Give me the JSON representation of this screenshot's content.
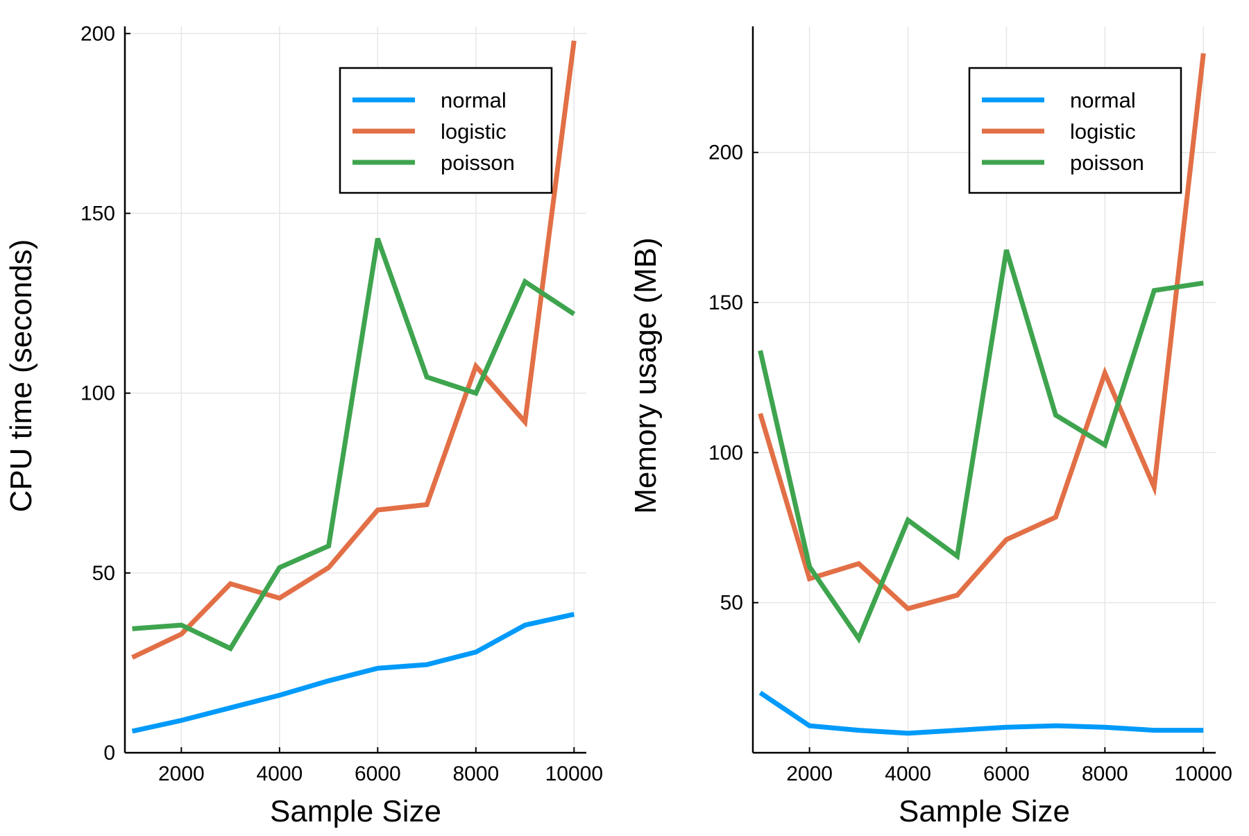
{
  "chart_data": [
    {
      "type": "line",
      "xlabel": "Sample Size",
      "ylabel": "CPU time (seconds)",
      "xlim": [
        850,
        10250
      ],
      "ylim": [
        0,
        202
      ],
      "xticks": [
        2000,
        4000,
        6000,
        8000,
        10000
      ],
      "yticks": [
        0,
        50,
        100,
        150,
        200
      ],
      "grid": true,
      "legend": "top-right",
      "x": [
        1000,
        2000,
        3000,
        4000,
        5000,
        6000,
        7000,
        8000,
        9000,
        10000
      ],
      "series": [
        {
          "name": "normal",
          "color": "#009AFA",
          "values": [
            6,
            9,
            12.5,
            16,
            20,
            23.5,
            24.5,
            28,
            35.5,
            38.5
          ]
        },
        {
          "name": "logistic",
          "color": "#E26F46",
          "values": [
            26.5,
            33,
            47,
            43,
            51.5,
            67.5,
            69,
            107.5,
            92,
            198
          ]
        },
        {
          "name": "poisson",
          "color": "#3EA44E",
          "values": [
            34.5,
            35.5,
            29,
            51.5,
            57.5,
            143,
            104.5,
            100,
            131,
            122
          ]
        }
      ]
    },
    {
      "type": "line",
      "xlabel": "Sample Size",
      "ylabel": "Memory usage (MB)",
      "xlim": [
        850,
        10250
      ],
      "ylim": [
        0,
        242
      ],
      "xticks": [
        2000,
        4000,
        6000,
        8000,
        10000
      ],
      "yticks": [
        50,
        100,
        150,
        200
      ],
      "grid": true,
      "legend": "top-right",
      "x": [
        1000,
        2000,
        3000,
        4000,
        5000,
        6000,
        7000,
        8000,
        9000,
        10000
      ],
      "series": [
        {
          "name": "normal",
          "color": "#009AFA",
          "values": [
            20,
            9,
            7.5,
            6.5,
            7.5,
            8.5,
            9,
            8.5,
            7.5,
            7.5
          ]
        },
        {
          "name": "logistic",
          "color": "#E26F46",
          "values": [
            113,
            58,
            63,
            48,
            52.5,
            71,
            78.5,
            126.5,
            88.5,
            233
          ]
        },
        {
          "name": "poisson",
          "color": "#3EA44E",
          "values": [
            134,
            62,
            38,
            77.5,
            65.5,
            167.5,
            112.5,
            102.5,
            154,
            156.5
          ]
        }
      ]
    }
  ]
}
